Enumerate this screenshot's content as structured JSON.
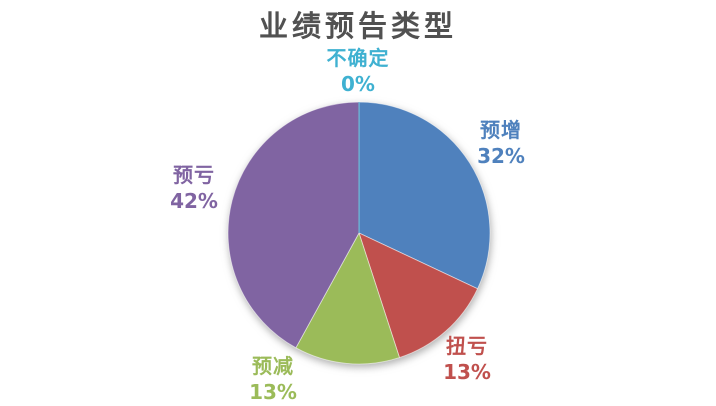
{
  "title": "业绩预告类型",
  "title_color": "#515151",
  "background_color": "#FFFFFF",
  "chart_data": {
    "type": "pie",
    "title": "业绩预告类型",
    "legend": "none",
    "start_angle_deg": 0,
    "direction": "clockwise",
    "label_style": "category-name-and-percentage-outside",
    "slices": [
      {
        "name": "预增",
        "value": 32,
        "pct": "32%",
        "color": "#4F81BD"
      },
      {
        "name": "扭亏",
        "value": 13,
        "pct": "13%",
        "color": "#C0504D"
      },
      {
        "name": "预减",
        "value": 13,
        "pct": "13%",
        "color": "#9BBB59"
      },
      {
        "name": "预亏",
        "value": 42,
        "pct": "42%",
        "color": "#8064A2"
      },
      {
        "name": "不确定",
        "value": 0,
        "pct": "0%",
        "color": "#3FB1D1"
      }
    ]
  }
}
